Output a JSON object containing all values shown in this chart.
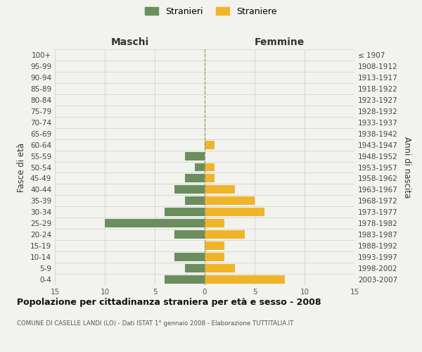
{
  "age_groups": [
    "100+",
    "95-99",
    "90-94",
    "85-89",
    "80-84",
    "75-79",
    "70-74",
    "65-69",
    "60-64",
    "55-59",
    "50-54",
    "45-49",
    "40-44",
    "35-39",
    "30-34",
    "25-29",
    "20-24",
    "15-19",
    "10-14",
    "5-9",
    "0-4"
  ],
  "birth_years": [
    "≤ 1907",
    "1908-1912",
    "1913-1917",
    "1918-1922",
    "1923-1927",
    "1928-1932",
    "1933-1937",
    "1938-1942",
    "1943-1947",
    "1948-1952",
    "1953-1957",
    "1958-1962",
    "1963-1967",
    "1968-1972",
    "1973-1977",
    "1978-1982",
    "1983-1987",
    "1988-1992",
    "1993-1997",
    "1998-2002",
    "2003-2007"
  ],
  "maschi": [
    0,
    0,
    0,
    0,
    0,
    0,
    0,
    0,
    0,
    2,
    1,
    2,
    3,
    2,
    4,
    10,
    3,
    0,
    3,
    2,
    4
  ],
  "femmine": [
    0,
    0,
    0,
    0,
    0,
    0,
    0,
    0,
    1,
    0,
    1,
    1,
    3,
    5,
    6,
    2,
    4,
    2,
    2,
    3,
    8
  ],
  "maschi_color": "#6b8e5e",
  "femmine_color": "#f0b429",
  "xlim": 15,
  "title": "Popolazione per cittadinanza straniera per età e sesso - 2008",
  "subtitle": "COMUNE DI CASELLE LANDI (LO) - Dati ISTAT 1° gennaio 2008 - Elaborazione TUTTITALIA.IT",
  "xlabel_left": "Maschi",
  "xlabel_right": "Femmine",
  "ylabel_left": "Fasce di età",
  "ylabel_right": "Anni di nascita",
  "legend_maschi": "Stranieri",
  "legend_femmine": "Straniere",
  "bg_color": "#f2f2ee",
  "grid_color": "#d0d0c8",
  "spine_color": "#cccccc"
}
